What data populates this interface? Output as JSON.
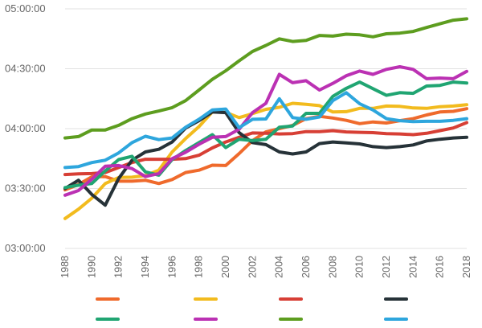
{
  "chart_data": {
    "type": "line",
    "title": "",
    "xlabel": "",
    "ylabel": "",
    "y_format": "hh:mm:ss",
    "ylim_seconds": [
      10800,
      18000
    ],
    "ytick_seconds": [
      10800,
      12600,
      14400,
      16200,
      18000
    ],
    "ytick_labels": [
      "03:00:00",
      "03:30:00",
      "04:00:00",
      "04:30:00",
      "05:00:00"
    ],
    "grid": "horizontal",
    "legend_position": "bottom",
    "x": [
      1988,
      1989,
      1990,
      1991,
      1992,
      1993,
      1994,
      1995,
      1996,
      1997,
      1998,
      1999,
      2000,
      2001,
      2002,
      2003,
      2004,
      2005,
      2006,
      2007,
      2008,
      2009,
      2010,
      2011,
      2012,
      2013,
      2014,
      2015,
      2016,
      2017,
      2018
    ],
    "xtick_labels": [
      "1988",
      "1990",
      "1992",
      "1994",
      "1996",
      "1998",
      "2000",
      "2002",
      "2004",
      "2006",
      "2008",
      "2010",
      "2012",
      "2014",
      "2016",
      "2018"
    ],
    "series": [
      {
        "name": "",
        "color": "#ef6a2c",
        "values": [
          12560,
          12720,
          12950,
          12960,
          12820,
          12820,
          12850,
          12750,
          12870,
          13080,
          13150,
          13300,
          13290,
          13650,
          14040,
          14300,
          14400,
          14500,
          14700,
          14770,
          14720,
          14650,
          14550,
          14600,
          14570,
          14640,
          14700,
          14810,
          14900,
          14920,
          15000
        ]
      },
      {
        "name": "",
        "color": "#f2bb1e",
        "values": [
          11700,
          11980,
          12310,
          12750,
          12930,
          12940,
          12990,
          13150,
          13700,
          14100,
          14460,
          14900,
          14890,
          14730,
          14850,
          14980,
          15040,
          15160,
          15130,
          15090,
          14900,
          14910,
          15010,
          15010,
          15080,
          15070,
          15020,
          15010,
          15060,
          15080,
          15120
        ]
      },
      {
        "name": "",
        "color": "#d73f35",
        "values": [
          13020,
          13040,
          13050,
          13080,
          13230,
          13380,
          13480,
          13480,
          13480,
          13500,
          13600,
          13820,
          14000,
          14140,
          14270,
          14260,
          14240,
          14250,
          14310,
          14310,
          14340,
          14300,
          14290,
          14280,
          14250,
          14240,
          14220,
          14260,
          14340,
          14420,
          14580
        ]
      },
      {
        "name": "",
        "color": "#263238",
        "values": [
          12600,
          12850,
          12420,
          12100,
          12900,
          13450,
          13700,
          13780,
          14000,
          14420,
          14640,
          14900,
          14880,
          14280,
          13980,
          13920,
          13700,
          13640,
          13700,
          13950,
          14000,
          13970,
          13940,
          13860,
          13830,
          13860,
          13910,
          14030,
          14080,
          14120,
          14140
        ]
      },
      {
        "name": "",
        "color": "#20a572",
        "values": [
          12630,
          12700,
          12750,
          13130,
          13470,
          13570,
          13100,
          13000,
          13470,
          13740,
          13980,
          14220,
          13830,
          14080,
          14040,
          14080,
          14440,
          14480,
          14860,
          14860,
          15370,
          15610,
          15800,
          15600,
          15400,
          15480,
          15460,
          15680,
          15700,
          15800,
          15770
        ]
      },
      {
        "name": "",
        "color": "#bb31b3",
        "values": [
          12400,
          12540,
          12880,
          13270,
          13290,
          13200,
          12960,
          13050,
          13500,
          13690,
          13930,
          14140,
          14160,
          14380,
          14880,
          15160,
          16030,
          15780,
          15840,
          15560,
          15760,
          15990,
          16130,
          16030,
          16180,
          16260,
          16180,
          15900,
          15920,
          15900,
          16120
        ]
      },
      {
        "name": "",
        "color": "#5d9d1f",
        "values": [
          14120,
          14160,
          14360,
          14360,
          14500,
          14700,
          14840,
          14930,
          15030,
          15240,
          15560,
          15880,
          16140,
          16440,
          16720,
          16900,
          17100,
          17020,
          17050,
          17200,
          17180,
          17240,
          17220,
          17160,
          17250,
          17270,
          17320,
          17440,
          17550,
          17660,
          17700
        ]
      },
      {
        "name": "",
        "color": "#2ea6dd",
        "values": [
          13230,
          13260,
          13380,
          13450,
          13670,
          13980,
          14170,
          14070,
          14120,
          14440,
          14680,
          14960,
          14990,
          14430,
          14680,
          14690,
          15300,
          14730,
          14680,
          14750,
          15240,
          15480,
          15150,
          14960,
          14700,
          14640,
          14610,
          14620,
          14620,
          14650,
          14700
        ]
      }
    ]
  }
}
